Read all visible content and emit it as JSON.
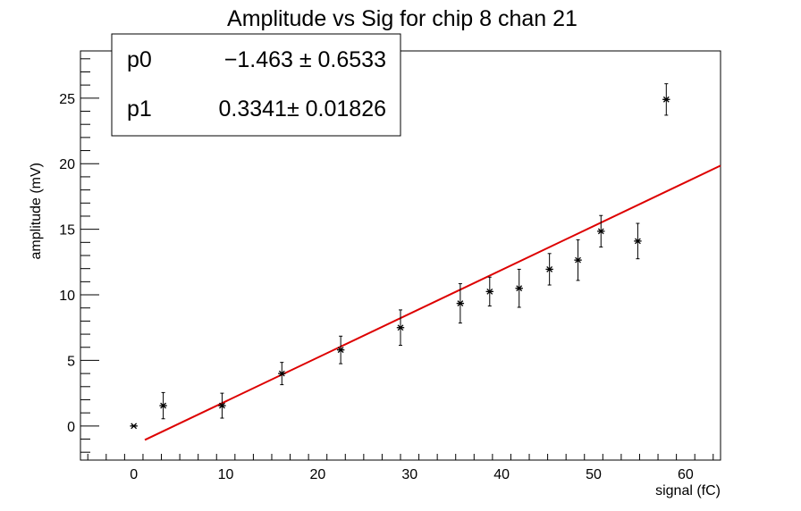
{
  "chart_data": {
    "type": "scatter",
    "title": "Amplitude vs Sig for chip 8 chan 21",
    "xlabel": "signal (fC)",
    "ylabel": "amplitude (mV)",
    "xlim": [
      -5.8,
      63.8
    ],
    "ylim": [
      -2.6,
      28.6
    ],
    "xticks": [
      0,
      10,
      20,
      30,
      40,
      50,
      60
    ],
    "yticks": [
      0,
      5,
      10,
      15,
      20,
      25
    ],
    "grid": false,
    "series": [
      {
        "marker": "asterisk",
        "color": "#000000",
        "points": [
          {
            "x": 0.0,
            "y": 0.0,
            "err": 0.0
          },
          {
            "x": 3.2,
            "y": 1.55,
            "err": 1.0
          },
          {
            "x": 9.6,
            "y": 1.55,
            "err": 0.95
          },
          {
            "x": 16.1,
            "y": 4.0,
            "err": 0.85
          },
          {
            "x": 22.5,
            "y": 5.8,
            "err": 1.05
          },
          {
            "x": 29.0,
            "y": 7.5,
            "err": 1.35
          },
          {
            "x": 35.5,
            "y": 9.35,
            "err": 1.5
          },
          {
            "x": 38.7,
            "y": 10.25,
            "err": 1.1
          },
          {
            "x": 41.9,
            "y": 10.5,
            "err": 1.45
          },
          {
            "x": 45.2,
            "y": 11.95,
            "err": 1.2
          },
          {
            "x": 48.3,
            "y": 12.65,
            "err": 1.55
          },
          {
            "x": 50.8,
            "y": 14.85,
            "err": 1.2
          },
          {
            "x": 54.8,
            "y": 14.1,
            "err": 1.35
          },
          {
            "x": 57.9,
            "y": 24.9,
            "err": 1.2
          }
        ]
      }
    ],
    "fit": {
      "color": "#dd0000",
      "intercept": -1.463,
      "slope": 0.3341,
      "x_range": [
        1.2,
        63.8
      ]
    },
    "stats": [
      {
        "name": "p0",
        "value": "−1.463 ± 0.6533"
      },
      {
        "name": "p1",
        "value": "0.3341± 0.01826"
      }
    ]
  }
}
